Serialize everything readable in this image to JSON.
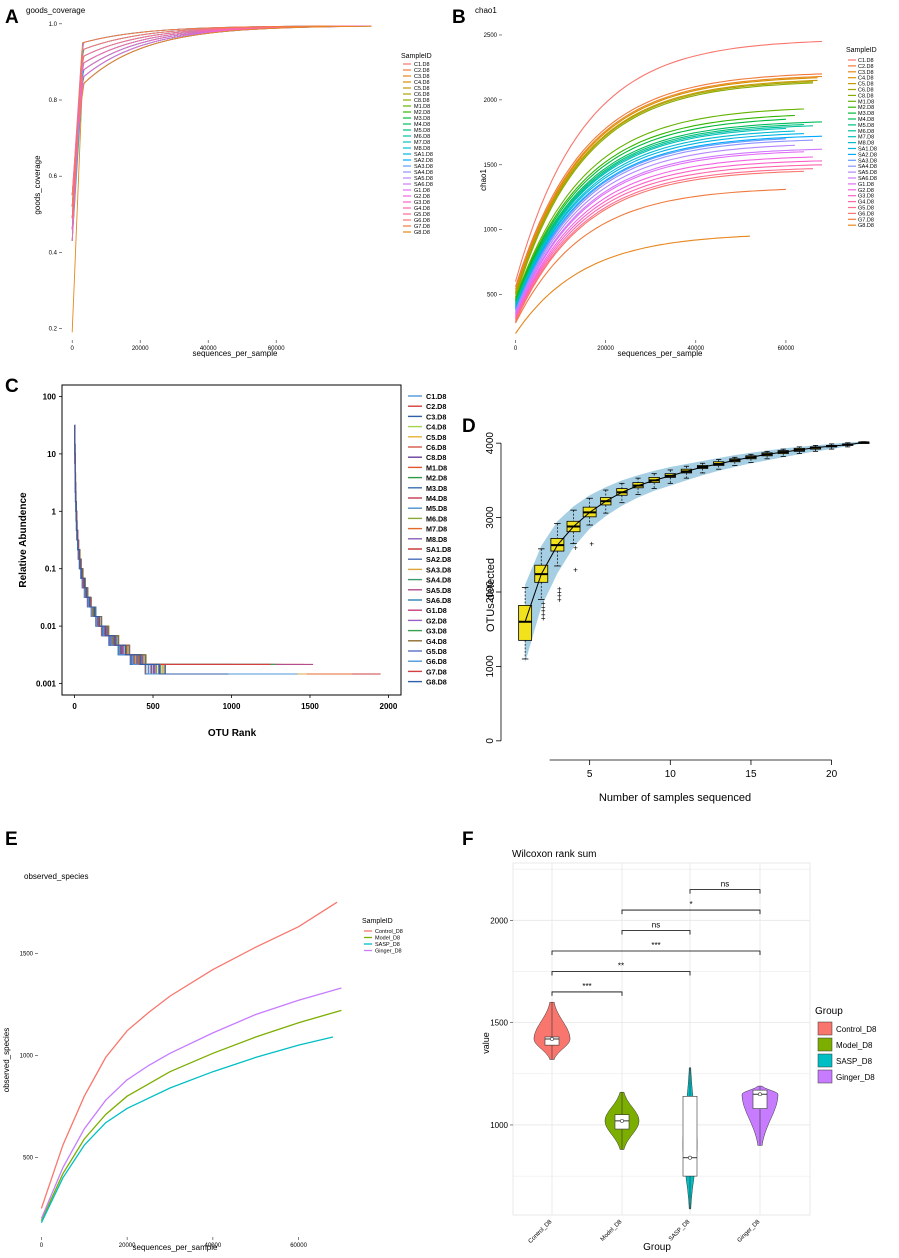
{
  "panel_letters": {
    "A": "A",
    "B": "B",
    "C": "C",
    "D": "D",
    "E": "E",
    "F": "F"
  },
  "colors": {
    "samples": [
      "#f8766d",
      "#f07a3c",
      "#e7861b",
      "#d89000",
      "#c49a00",
      "#a9a400",
      "#8aab00",
      "#64b200",
      "#2fb600",
      "#00ba38",
      "#00bd5c",
      "#00bf7d",
      "#00c19c",
      "#00c0b8",
      "#00bcd1",
      "#00b4e4",
      "#00a9ff",
      "#619cff",
      "#8f91ff",
      "#b385ff",
      "#cf78ff",
      "#e26ef7",
      "#f263e2",
      "#fb61c7",
      "#ff65ac",
      "#ff6c91"
    ],
    "c_samples": [
      "#4f97d8",
      "#d13f3f",
      "#2f5fa8",
      "#a7d34f",
      "#e8b23a",
      "#d6584a",
      "#6a3d9a",
      "#e3562b",
      "#2e9a48",
      "#3a6fb0",
      "#c23b4e",
      "#4e8fce",
      "#8aa83a",
      "#e36a2c",
      "#8b5fb6",
      "#c72f2f",
      "#4b6fb8",
      "#d9a43c",
      "#3e9a6e",
      "#b34c8c",
      "#2e7fb8",
      "#c43e7c",
      "#9b5fc0",
      "#3da04e",
      "#8c6d2f",
      "#5a6fc8"
    ],
    "group": [
      "#f8766d",
      "#7cae00",
      "#00bfc4",
      "#c77cff"
    ],
    "boxfill": "#f2e21b",
    "band": "#a6cfe3"
  },
  "chart_data": [
    {
      "panel": "A",
      "type": "line",
      "title": "goods_coverage",
      "xlabel": "sequences_per_sample",
      "ylabel": "goods_coverage",
      "x_ticks": [
        0,
        20000,
        40000,
        60000
      ],
      "x_tick_labels": [
        "0",
        "20000",
        "40000",
        "60000"
      ],
      "y_ticks": [
        0.2,
        0.4,
        0.6,
        0.8,
        1.0
      ],
      "y_tick_labels": [
        "0.2",
        "0.4",
        "0.6",
        "0.8",
        "1.0"
      ],
      "xlim": [
        -3000,
        92000
      ],
      "ylim": [
        0.17,
        1.01
      ],
      "legend_title": "SampleID",
      "legend": [
        "C1.D8",
        "C2.D8",
        "C3.D8",
        "C4.D8",
        "C5.D8",
        "C6.D8",
        "C8.D8",
        "M1.D8",
        "M2.D8",
        "M3.D8",
        "M4.D8",
        "M5.D8",
        "M6.D8",
        "M7.D8",
        "M8.D8",
        "SA1.D8",
        "SA2.D8",
        "SA3.D8",
        "SA4.D8",
        "SA5.D8",
        "SA6.D8",
        "G1.D8",
        "G2.D8",
        "G3.D8",
        "G4.D8",
        "G5.D8",
        "G6.D8",
        "G7.D8",
        "G8.D8"
      ],
      "curve": {
        "x_max": 88000,
        "y_end": 0.995,
        "y_start_min": 0.19,
        "y_start_max": 0.55,
        "knee_min": 0.84,
        "knee_max": 0.95
      }
    },
    {
      "panel": "B",
      "type": "line",
      "title": "chao1",
      "xlabel": "sequences_per_sample",
      "ylabel": "chao1",
      "x_ticks": [
        0,
        20000,
        40000,
        60000
      ],
      "x_tick_labels": [
        "0",
        "20000",
        "40000",
        "60000"
      ],
      "y_ticks": [
        500,
        1000,
        1500,
        2000,
        2500
      ],
      "y_tick_labels": [
        "500",
        "1000",
        "1500",
        "2000",
        "2500"
      ],
      "xlim": [
        -3000,
        72000
      ],
      "ylim": [
        150,
        2600
      ],
      "legend_title": "SampleID",
      "legend": [
        "C1.D8",
        "C2.D8",
        "C3.D8",
        "C4.D8",
        "C5.D8",
        "C6.D8",
        "C8.D8",
        "M1.D8",
        "M2.D8",
        "M3.D8",
        "M4.D8",
        "M5.D8",
        "M6.D8",
        "M7.D8",
        "M8.D8",
        "SA1.D8",
        "SA2.D8",
        "SA3.D8",
        "SA4.D8",
        "SA5.D8",
        "SA6.D8",
        "G1.D8",
        "G2.D8",
        "G3.D8",
        "G4.D8",
        "G5.D8",
        "G6.D8",
        "G7.D8",
        "G8.D8"
      ],
      "end_values": [
        2450,
        2200,
        2180,
        2170,
        2150,
        2140,
        2130,
        1930,
        1880,
        1850,
        1830,
        1810,
        1800,
        1780,
        1760,
        1740,
        1720,
        1700,
        1690,
        1650,
        1620,
        1600,
        1560,
        1530,
        1500,
        1470,
        1450,
        1310,
        950
      ],
      "start_values": [
        600,
        560,
        540,
        520,
        510,
        500,
        480,
        470,
        460,
        450,
        440,
        430,
        420,
        410,
        400,
        400,
        390,
        380,
        370,
        360,
        350,
        340,
        330,
        320,
        310,
        300,
        290,
        280,
        200
      ],
      "x_max": [
        68000,
        68000,
        68000,
        67000,
        67000,
        66000,
        66000,
        64000,
        62000,
        60000,
        68000,
        64000,
        66000,
        60000,
        62000,
        64000,
        68000,
        60000,
        66000,
        62000,
        68000,
        64000,
        66000,
        68000,
        68000,
        66000,
        64000,
        60000,
        52000
      ]
    },
    {
      "panel": "C",
      "type": "line",
      "title": "",
      "xlabel": "OTU Rank",
      "ylabel": "Relative Abundence",
      "x_ticks": [
        0,
        500,
        1000,
        1500,
        2000
      ],
      "x_tick_labels": [
        "0",
        "500",
        "1000",
        "1500",
        "2000"
      ],
      "y_ticks": [
        0.001,
        0.01,
        0.1,
        1,
        10,
        100
      ],
      "y_tick_labels": [
        "0.001",
        "0.01",
        "0.1",
        "1",
        "10",
        "100"
      ],
      "xlim": [
        -80,
        2080
      ],
      "ylim_log10": [
        -3.2,
        2.2
      ],
      "legend": [
        "C1.D8",
        "C2.D8",
        "C3.D8",
        "C4.D8",
        "C5.D8",
        "C6.D8",
        "C8.D8",
        "M1.D8",
        "M2.D8",
        "M3.D8",
        "M4.D8",
        "M5.D8",
        "M6.D8",
        "M7.D8",
        "M8.D8",
        "SA1.D8",
        "SA2.D8",
        "SA3.D8",
        "SA4.D8",
        "SA5.D8",
        "SA6.D8",
        "G1.D8",
        "G2.D8",
        "G3.D8",
        "G4.D8",
        "G5.D8",
        "G6.D8",
        "G7.D8",
        "G8.D8"
      ],
      "max_rank": [
        1390,
        1950,
        1420,
        1320,
        1100,
        1410,
        1230,
        1460,
        1180,
        1050,
        1380,
        1300,
        1150,
        1770,
        1250,
        1000,
        1100,
        1480,
        1320,
        1520,
        1200,
        900,
        1050,
        1280,
        1330,
        1100,
        1420,
        1250,
        980
      ]
    },
    {
      "panel": "D",
      "type": "box",
      "title": "",
      "xlabel": "Number of samples sequenced",
      "ylabel": "OTUs detected",
      "x_ticks": [
        5,
        10,
        15,
        20
      ],
      "x_tick_labels": [
        "5",
        "10",
        "15",
        "20"
      ],
      "y_ticks": [
        0,
        1000,
        2000,
        3000,
        4000
      ],
      "y_tick_labels": [
        "0",
        "1000",
        "2000",
        "3000",
        "4000"
      ],
      "xlim": [
        0,
        23
      ],
      "ylim": [
        -150,
        4150
      ],
      "n": [
        1,
        2,
        3,
        4,
        5,
        6,
        7,
        8,
        9,
        10,
        11,
        12,
        13,
        14,
        15,
        16,
        17,
        18,
        19,
        20,
        21,
        22
      ],
      "median": [
        1600,
        2240,
        2630,
        2880,
        3070,
        3220,
        3340,
        3430,
        3500,
        3560,
        3620,
        3680,
        3720,
        3770,
        3810,
        3850,
        3880,
        3910,
        3940,
        3960,
        3980,
        4010
      ],
      "q1": [
        1350,
        2130,
        2550,
        2810,
        3010,
        3170,
        3300,
        3400,
        3470,
        3540,
        3600,
        3660,
        3700,
        3750,
        3790,
        3830,
        3860,
        3890,
        3920,
        3950,
        3970,
        4005
      ],
      "q3": [
        1820,
        2360,
        2720,
        2950,
        3140,
        3270,
        3390,
        3470,
        3540,
        3590,
        3650,
        3700,
        3750,
        3790,
        3830,
        3870,
        3900,
        3930,
        3950,
        3970,
        3990,
        4015
      ],
      "wmin": [
        1100,
        1900,
        2350,
        2650,
        2900,
        3060,
        3200,
        3310,
        3390,
        3460,
        3530,
        3600,
        3650,
        3700,
        3740,
        3790,
        3820,
        3860,
        3890,
        3920,
        3950,
        4000
      ],
      "wmax": [
        2060,
        2580,
        2920,
        3100,
        3260,
        3370,
        3460,
        3530,
        3590,
        3640,
        3690,
        3730,
        3780,
        3810,
        3850,
        3890,
        3920,
        3950,
        3970,
        3990,
        4005,
        4020
      ],
      "outliers": [
        [],
        [
          1650,
          1700,
          1750,
          1800,
          1850
        ],
        [
          1900,
          1950,
          2000,
          2050
        ],
        [
          2300,
          2600
        ],
        [
          2650
        ],
        [],
        [],
        [],
        [],
        [],
        [],
        [],
        [],
        [],
        [],
        [],
        [],
        [],
        [],
        [],
        [],
        []
      ],
      "band_low": [
        1050,
        1800,
        2250,
        2600,
        2850,
        3020,
        3160,
        3270,
        3360,
        3430,
        3500,
        3570,
        3630,
        3680,
        3730,
        3770,
        3810,
        3850,
        3890,
        3920,
        3960,
        4000
      ],
      "band_high": [
        2100,
        2620,
        2950,
        3150,
        3300,
        3410,
        3500,
        3570,
        3630,
        3680,
        3720,
        3760,
        3800,
        3840,
        3870,
        3900,
        3930,
        3950,
        3970,
        3990,
        4010,
        4020
      ]
    },
    {
      "panel": "E",
      "type": "line",
      "title": "observed_species",
      "xlabel": "sequences_per_sample",
      "ylabel": "observed_species",
      "x_ticks": [
        0,
        20000,
        40000,
        60000
      ],
      "x_tick_labels": [
        "0",
        "20000",
        "40000",
        "60000"
      ],
      "y_ticks": [
        500,
        1000,
        1500
      ],
      "y_tick_labels": [
        "500",
        "1000",
        "1500"
      ],
      "xlim": [
        -800,
        72000
      ],
      "ylim": [
        110,
        1810
      ],
      "legend_title": "SampleID",
      "series": [
        {
          "name": "Control_D8",
          "x": [
            0,
            5000,
            10000,
            15000,
            20000,
            25000,
            30000,
            40000,
            50000,
            60000,
            69000
          ],
          "values": [
            250,
            560,
            800,
            990,
            1120,
            1210,
            1290,
            1420,
            1530,
            1630,
            1750
          ]
        },
        {
          "name": "Model_D8",
          "x": [
            0,
            5000,
            10000,
            15000,
            20000,
            25000,
            30000,
            40000,
            50000,
            60000,
            70000
          ],
          "values": [
            190,
            420,
            590,
            710,
            800,
            860,
            920,
            1010,
            1090,
            1160,
            1220
          ]
        },
        {
          "name": "SASP_D8",
          "x": [
            0,
            5000,
            10000,
            15000,
            20000,
            25000,
            30000,
            40000,
            50000,
            60000,
            68000
          ],
          "values": [
            180,
            400,
            560,
            670,
            740,
            790,
            840,
            920,
            990,
            1050,
            1090
          ]
        },
        {
          "name": "Ginger_D8",
          "x": [
            0,
            5000,
            10000,
            15000,
            20000,
            25000,
            30000,
            40000,
            50000,
            60000,
            70000
          ],
          "values": [
            200,
            450,
            640,
            780,
            880,
            950,
            1010,
            1110,
            1200,
            1270,
            1330
          ]
        }
      ]
    },
    {
      "panel": "F",
      "type": "violin",
      "title": "Wilcoxon rank sum",
      "xlabel": "Group",
      "ylabel": "value",
      "categories": [
        "Control_D8",
        "Model_D8",
        "SASP_D8",
        "Ginger_D8"
      ],
      "y_ticks": [
        1000,
        1500,
        2000
      ],
      "y_tick_labels": [
        "1000",
        "1500",
        "2000"
      ],
      "ylim": [
        560,
        2280
      ],
      "legend_title": "Group",
      "legend": [
        "Control_D8",
        "Model_D8",
        "SASP_D8",
        "Ginger_D8"
      ],
      "violins": [
        {
          "min": 1320,
          "max": 1600,
          "q1": 1390,
          "median": 1420,
          "q3": 1430,
          "width": 36,
          "peak": 1420
        },
        {
          "min": 880,
          "max": 1160,
          "q1": 980,
          "median": 1020,
          "q3": 1050,
          "width": 34,
          "peak": 1020
        },
        {
          "min": 590,
          "max": 1280,
          "q1": 750,
          "median": 840,
          "q3": 1140,
          "width": 14,
          "peak": 900
        },
        {
          "min": 900,
          "max": 1190,
          "q1": 1080,
          "median": 1150,
          "q3": 1170,
          "width": 36,
          "peak": 1150
        }
      ],
      "comparisons": [
        {
          "from": 0,
          "to": 1,
          "y": 1650,
          "label": "***"
        },
        {
          "from": 0,
          "to": 2,
          "y": 1750,
          "label": "**"
        },
        {
          "from": 0,
          "to": 3,
          "y": 1850,
          "label": "***"
        },
        {
          "from": 1,
          "to": 2,
          "y": 1950,
          "label": "ns"
        },
        {
          "from": 1,
          "to": 3,
          "y": 2050,
          "label": "*"
        },
        {
          "from": 2,
          "to": 3,
          "y": 2150,
          "label": "ns"
        }
      ]
    }
  ]
}
